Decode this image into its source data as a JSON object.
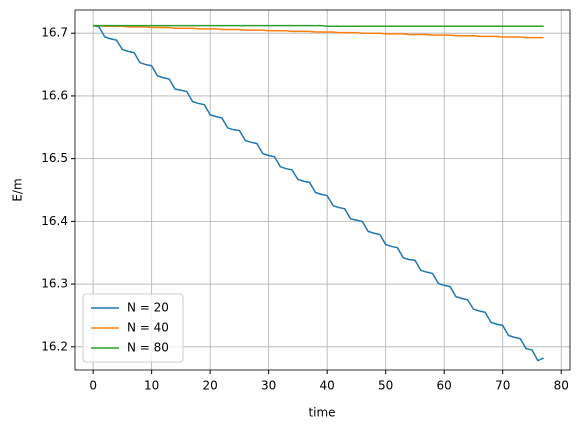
{
  "chart_data": {
    "type": "line",
    "xlabel": "time",
    "ylabel": "E/m",
    "x": [
      0,
      1,
      2,
      3,
      4,
      5,
      6,
      7,
      8,
      9,
      10,
      11,
      12,
      13,
      14,
      15,
      16,
      17,
      18,
      19,
      20,
      21,
      22,
      23,
      24,
      25,
      26,
      27,
      28,
      29,
      30,
      31,
      32,
      33,
      34,
      35,
      36,
      37,
      38,
      39,
      40,
      41,
      42,
      43,
      44,
      45,
      46,
      47,
      48,
      49,
      50,
      51,
      52,
      53,
      54,
      55,
      56,
      57,
      58,
      59,
      60,
      61,
      62,
      63,
      64,
      65,
      66,
      67,
      68,
      69,
      70,
      71,
      72,
      73,
      74,
      75,
      76,
      77
    ],
    "series": [
      {
        "name": "N = 20",
        "color": "#1f77b4",
        "values": [
          16.712,
          16.71,
          16.694,
          16.691,
          16.689,
          16.674,
          16.671,
          16.669,
          16.653,
          16.65,
          16.648,
          16.632,
          16.629,
          16.627,
          16.611,
          16.609,
          16.607,
          16.591,
          16.588,
          16.586,
          16.57,
          16.567,
          16.565,
          16.549,
          16.546,
          16.545,
          16.529,
          16.526,
          16.524,
          16.508,
          16.505,
          16.503,
          16.487,
          16.484,
          16.482,
          16.467,
          16.464,
          16.462,
          16.446,
          16.443,
          16.441,
          16.425,
          16.422,
          16.42,
          16.404,
          16.402,
          16.4,
          16.384,
          16.381,
          16.379,
          16.363,
          16.36,
          16.358,
          16.342,
          16.339,
          16.338,
          16.322,
          16.319,
          16.317,
          16.301,
          16.298,
          16.296,
          16.28,
          16.277,
          16.275,
          16.26,
          16.257,
          16.255,
          16.239,
          16.236,
          16.234,
          16.218,
          16.215,
          16.213,
          16.197,
          16.195,
          16.178,
          16.182
        ]
      },
      {
        "name": "N = 40",
        "color": "#ff7f0e",
        "values": [
          16.712,
          16.712,
          16.711,
          16.711,
          16.711,
          16.711,
          16.71,
          16.71,
          16.71,
          16.71,
          16.709,
          16.709,
          16.709,
          16.709,
          16.708,
          16.708,
          16.708,
          16.708,
          16.707,
          16.707,
          16.707,
          16.707,
          16.706,
          16.706,
          16.706,
          16.706,
          16.705,
          16.705,
          16.705,
          16.705,
          16.704,
          16.704,
          16.704,
          16.704,
          16.703,
          16.703,
          16.703,
          16.703,
          16.702,
          16.702,
          16.702,
          16.702,
          16.701,
          16.701,
          16.701,
          16.701,
          16.7,
          16.7,
          16.7,
          16.7,
          16.699,
          16.699,
          16.699,
          16.699,
          16.698,
          16.698,
          16.698,
          16.698,
          16.697,
          16.697,
          16.697,
          16.697,
          16.696,
          16.696,
          16.696,
          16.696,
          16.695,
          16.695,
          16.695,
          16.695,
          16.694,
          16.694,
          16.694,
          16.694,
          16.693,
          16.693,
          16.693,
          16.693
        ]
      },
      {
        "name": "N = 80",
        "color": "#2ca02c",
        "values": [
          16.712,
          16.712,
          16.712,
          16.712,
          16.712,
          16.712,
          16.712,
          16.712,
          16.712,
          16.712,
          16.712,
          16.712,
          16.712,
          16.712,
          16.712,
          16.712,
          16.712,
          16.712,
          16.712,
          16.712,
          16.712,
          16.712,
          16.712,
          16.712,
          16.712,
          16.712,
          16.712,
          16.712,
          16.712,
          16.712,
          16.712,
          16.712,
          16.712,
          16.712,
          16.712,
          16.712,
          16.712,
          16.712,
          16.712,
          16.712,
          16.711,
          16.711,
          16.711,
          16.711,
          16.711,
          16.711,
          16.711,
          16.711,
          16.711,
          16.711,
          16.711,
          16.711,
          16.711,
          16.711,
          16.711,
          16.711,
          16.711,
          16.711,
          16.711,
          16.711,
          16.711,
          16.711,
          16.711,
          16.711,
          16.711,
          16.711,
          16.711,
          16.711,
          16.711,
          16.711,
          16.711,
          16.711,
          16.711,
          16.711,
          16.711,
          16.711,
          16.711,
          16.711
        ]
      }
    ],
    "xlim": [
      -3.1,
      81.5
    ],
    "ylim": [
      16.163,
      16.737
    ],
    "xticks": [
      0,
      10,
      20,
      30,
      40,
      50,
      60,
      70,
      80
    ],
    "yticks": [
      16.2,
      16.3,
      16.4,
      16.5,
      16.6,
      16.7
    ],
    "grid": true,
    "legend": "lower left"
  }
}
